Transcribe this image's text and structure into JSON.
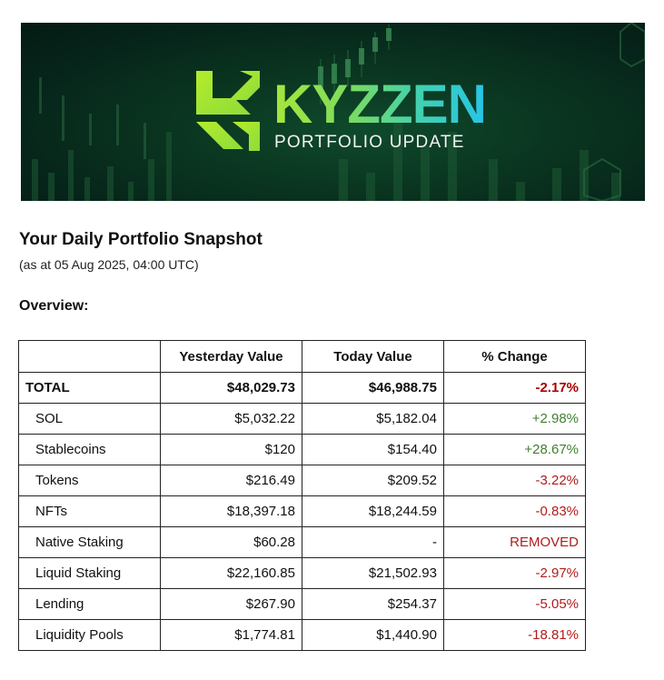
{
  "banner": {
    "brand": "KYZZEN",
    "subtitle": "PORTFOLIO UPDATE",
    "colors": {
      "background": "#0a3520",
      "brand_gradient_start": "#a8e63a",
      "brand_gradient_end": "#27c4e8",
      "subtitle": "#f2f2f2"
    }
  },
  "heading": "Your Daily Portfolio Snapshot",
  "subheading": "(as at 05 Aug 2025, 04:00 UTC)",
  "section_label": "Overview:",
  "table": {
    "headers": [
      "",
      "Yesterday Value",
      "Today Value",
      "% Change"
    ],
    "total": {
      "name": "TOTAL",
      "yesterday": "$48,029.73",
      "today": "$46,988.75",
      "change": "-2.17%"
    },
    "rows": [
      {
        "name": "SOL",
        "yesterday": "$5,032.22",
        "today": "$5,182.04",
        "change": "+2.98%"
      },
      {
        "name": "Stablecoins",
        "yesterday": "$120",
        "today": "$154.40",
        "change": "+28.67%"
      },
      {
        "name": "Tokens",
        "yesterday": "$216.49",
        "today": "$209.52",
        "change": "-3.22%"
      },
      {
        "name": "NFTs",
        "yesterday": "$18,397.18",
        "today": "$18,244.59",
        "change": "-0.83%"
      },
      {
        "name": "Native Staking",
        "yesterday": "$60.28",
        "today": "-",
        "change": "REMOVED"
      },
      {
        "name": "Liquid Staking",
        "yesterday": "$22,160.85",
        "today": "$21,502.93",
        "change": "-2.97%"
      },
      {
        "name": "Lending",
        "yesterday": "$267.90",
        "today": "$254.37",
        "change": "-5.05%"
      },
      {
        "name": "Liquidity Pools",
        "yesterday": "$1,774.81",
        "today": "$1,440.90",
        "change": "-18.81%"
      }
    ],
    "colors": {
      "positive": "#3f7f2f",
      "negative": "#b11b1b",
      "total_negative": "#a80000"
    }
  }
}
